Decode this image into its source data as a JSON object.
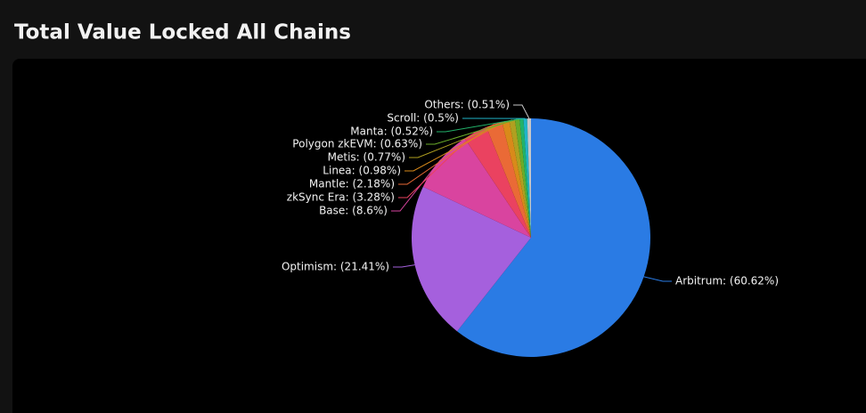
{
  "chart_data": {
    "type": "pie",
    "title": "Total Value Locked All Chains",
    "values": [
      60.62,
      21.41,
      8.6,
      3.28,
      2.18,
      0.98,
      0.77,
      0.63,
      0.52,
      0.5,
      0.51
    ],
    "value_labels": [
      "Arbitrum: (60.62%)",
      "Optimism: (21.41%)",
      "Base: (8.6%)",
      "zkSync Era: (3.28%)",
      "Mantle: (2.18%)",
      "Linea: (0.98%)",
      "Metis: (0.77%)",
      "Polygon zkEVM: (0.63%)",
      "Manta: (0.52%)",
      "Scroll: (0.5%)",
      "Others: (0.51%)"
    ],
    "colors": [
      "#2a7be4",
      "#a560dd",
      "#d9449f",
      "#ea4260",
      "#ea6a36",
      "#d98a1a",
      "#b0a020",
      "#6aac2a",
      "#22b26a",
      "#20b4c8",
      "#c8c8c8"
    ]
  }
}
